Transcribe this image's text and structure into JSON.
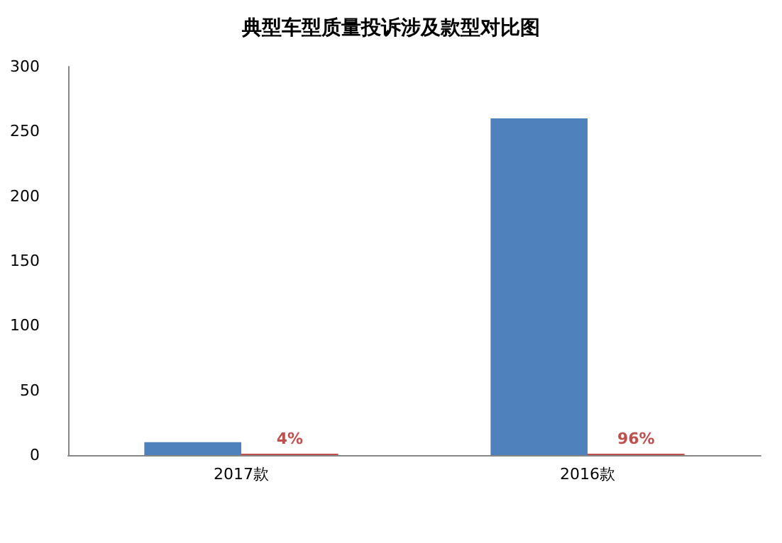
{
  "chart_data": {
    "type": "bar",
    "title": "典型车型质量投诉涉及款型对比图",
    "categories": [
      "2017款",
      "2016款"
    ],
    "series": [
      {
        "color": "#4f81bd",
        "values": [
          10,
          260
        ]
      },
      {
        "color": "#c0504d",
        "values": [
          0.04,
          0.96
        ],
        "value_labels": [
          "4%",
          "96%"
        ]
      }
    ],
    "ylim": [
      0,
      300
    ],
    "yticks": [
      0,
      50,
      100,
      150,
      200,
      250,
      300
    ],
    "grid": false
  }
}
